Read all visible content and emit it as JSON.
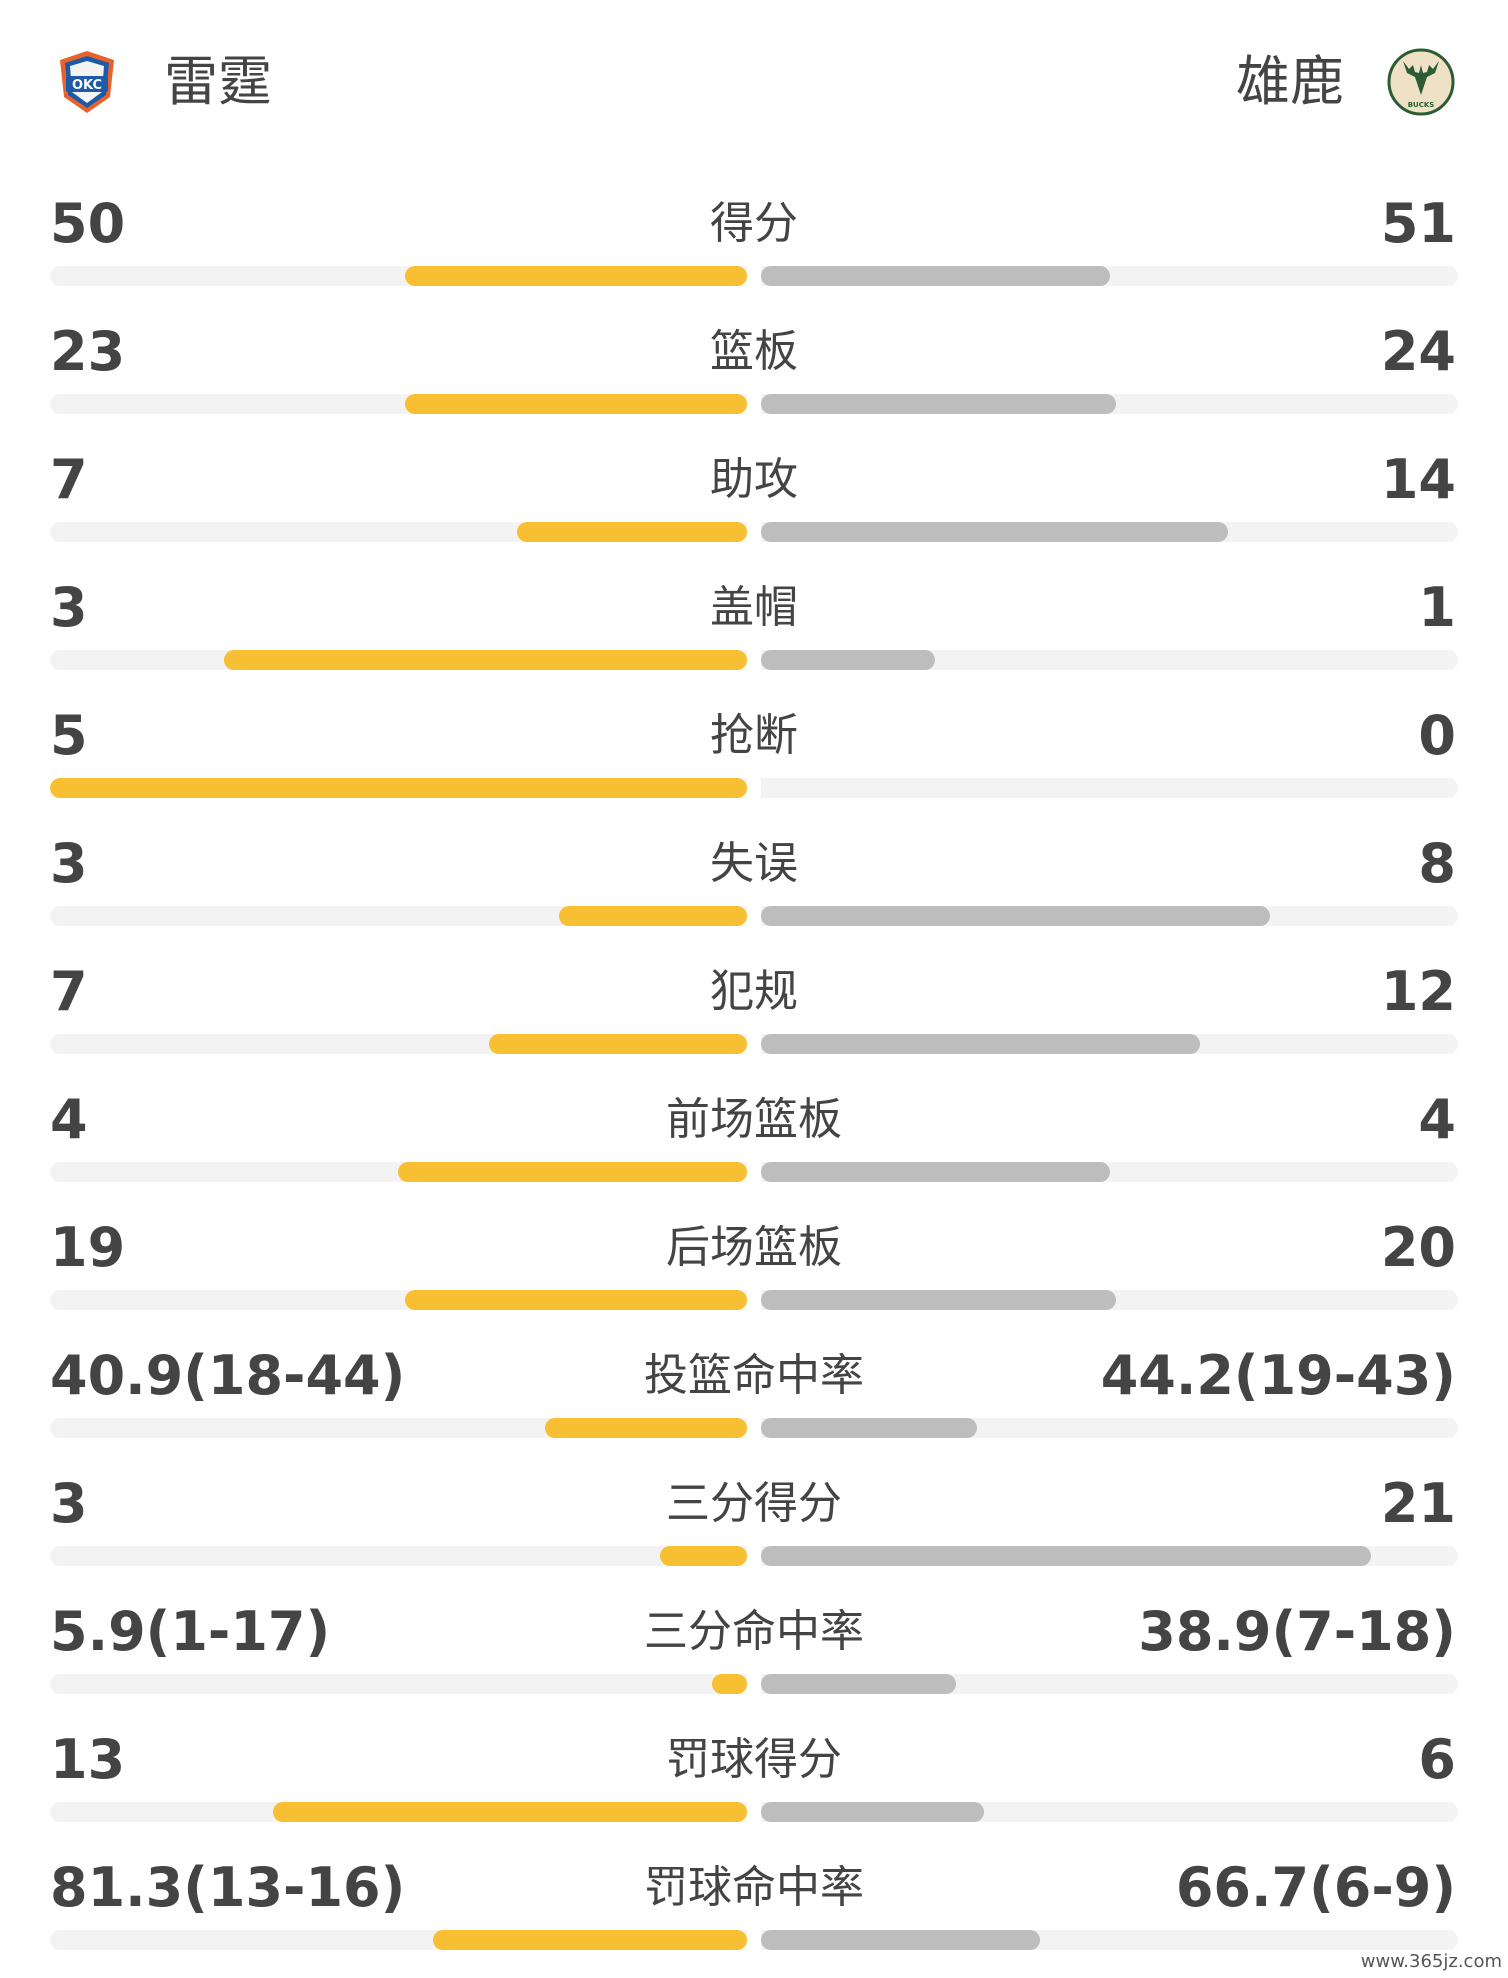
{
  "header": {
    "home": {
      "name": "雷霆",
      "logo_text": "OKC",
      "logo_icon": "okc-thunder-logo-icon"
    },
    "away": {
      "name": "雄鹿",
      "logo_text": "BUCKS",
      "logo_icon": "milwaukee-bucks-logo-icon"
    }
  },
  "colors": {
    "home_bar": "#f9bf33",
    "away_bar": "#bdbdbd",
    "track": "#f3f3f3",
    "text": "#444444"
  },
  "stats": [
    {
      "label": "得分",
      "home": "50",
      "away": "51",
      "home_fill": 0.49,
      "away_fill": 0.5
    },
    {
      "label": "篮板",
      "home": "23",
      "away": "24",
      "home_fill": 0.49,
      "away_fill": 0.51
    },
    {
      "label": "助攻",
      "home": "7",
      "away": "14",
      "home_fill": 0.33,
      "away_fill": 0.67
    },
    {
      "label": "盖帽",
      "home": "3",
      "away": "1",
      "home_fill": 0.75,
      "away_fill": 0.25
    },
    {
      "label": "抢断",
      "home": "5",
      "away": "0",
      "home_fill": 1.0,
      "away_fill": 0.0
    },
    {
      "label": "失误",
      "home": "3",
      "away": "8",
      "home_fill": 0.27,
      "away_fill": 0.73
    },
    {
      "label": "犯规",
      "home": "7",
      "away": "12",
      "home_fill": 0.37,
      "away_fill": 0.63
    },
    {
      "label": "前场篮板",
      "home": "4",
      "away": "4",
      "home_fill": 0.5,
      "away_fill": 0.5
    },
    {
      "label": "后场篮板",
      "home": "19",
      "away": "20",
      "home_fill": 0.49,
      "away_fill": 0.51
    },
    {
      "label": "投篮命中率",
      "home": "40.9(18-44)",
      "away": "44.2(19-43)",
      "home_fill": 0.29,
      "away_fill": 0.31
    },
    {
      "label": "三分得分",
      "home": "3",
      "away": "21",
      "home_fill": 0.125,
      "away_fill": 0.875
    },
    {
      "label": "三分命中率",
      "home": "5.9(1-17)",
      "away": "38.9(7-18)",
      "home_fill": 0.05,
      "away_fill": 0.28
    },
    {
      "label": "罚球得分",
      "home": "13",
      "away": "6",
      "home_fill": 0.68,
      "away_fill": 0.32
    },
    {
      "label": "罚球命中率",
      "home": "81.3(13-16)",
      "away": "66.7(6-9)",
      "home_fill": 0.45,
      "away_fill": 0.4
    }
  ],
  "watermark": "www.365jz.com"
}
